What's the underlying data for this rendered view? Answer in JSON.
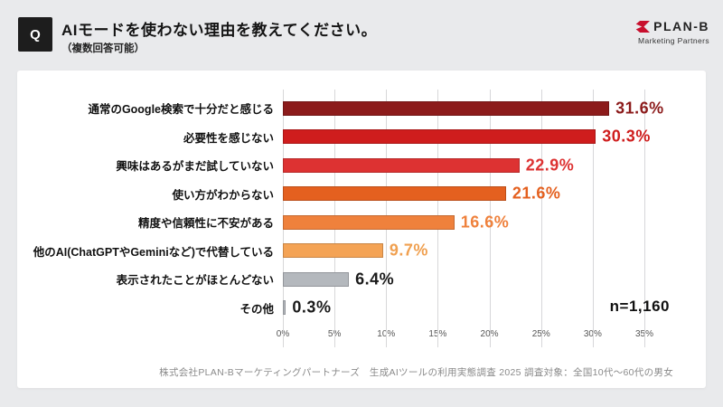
{
  "header": {
    "q_label": "Q",
    "title": "AIモードを使わない理由を教えてください。",
    "subtitle": "（複数回答可能）",
    "logo": {
      "name": "PLAN-B",
      "tagline": "Marketing Partners",
      "accent_color": "#c8102e"
    }
  },
  "chart_data": {
    "type": "bar",
    "orientation": "horizontal",
    "title": "AIモードを使わない理由を教えてください。（複数回答可能）",
    "categories": [
      "通常のGoogle検索で十分だと感じる",
      "必要性を感じない",
      "興味はあるがまだ試していない",
      "使い方がわからない",
      "精度や信頼性に不安がある",
      "他のAI(ChatGPTやGeminiなど)で代替している",
      "表示されたことがほとんどない",
      "その他"
    ],
    "values": [
      31.6,
      30.3,
      22.9,
      21.6,
      16.6,
      9.7,
      6.4,
      0.3
    ],
    "bar_colors": [
      "#8c1b1b",
      "#cf1d1d",
      "#dd3232",
      "#e4601f",
      "#ef813c",
      "#f4a355",
      "#b4b8bd",
      "#b4b8bd"
    ],
    "value_label_colors": [
      "#8c1b1b",
      "#cf1d1d",
      "#dd3232",
      "#e4601f",
      "#ef813c",
      "#f0a050",
      "#1a1a1a",
      "#1a1a1a"
    ],
    "xlim": [
      0,
      35
    ],
    "tick_values": [
      0,
      5,
      10,
      15,
      20,
      25,
      30,
      35
    ],
    "tick_labels": [
      "0%",
      "5%",
      "10%",
      "15%",
      "20%",
      "25%",
      "30%",
      "35%"
    ],
    "grid": true,
    "legend": "none",
    "sample_size": "n=1,160"
  },
  "footer": {
    "caption": "株式会社PLAN-Bマーケティングパートナーズ　生成AIツールの利用実態調査 2025 調査対象：全国10代～60代の男女"
  }
}
